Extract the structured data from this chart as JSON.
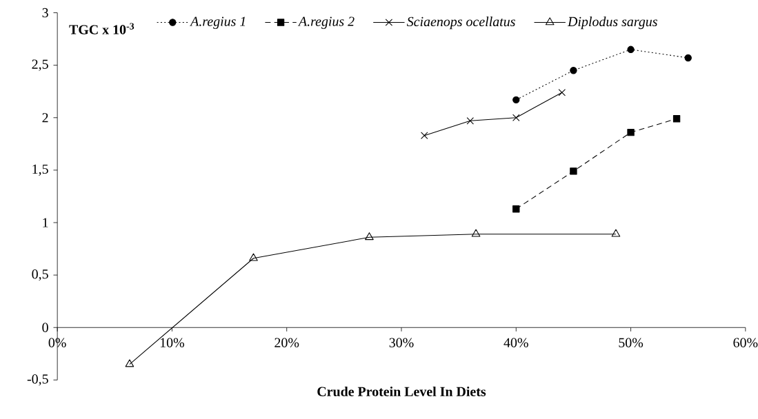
{
  "chart_data": {
    "type": "line",
    "xlabel": "Crude Protein Level In Diets",
    "ylabel": "TGC x 10$^{-3}$",
    "xlim": [
      0,
      60
    ],
    "ylim": [
      -0.5,
      3
    ],
    "xticks": [
      {
        "value": 0,
        "label": "0%"
      },
      {
        "value": 10,
        "label": "10%"
      },
      {
        "value": 20,
        "label": "20%"
      },
      {
        "value": 30,
        "label": "30%"
      },
      {
        "value": 40,
        "label": "40%"
      },
      {
        "value": 50,
        "label": "50%"
      },
      {
        "value": 60,
        "label": "60%"
      }
    ],
    "yticks": [
      {
        "value": -0.5,
        "label": "-0,5"
      },
      0,
      {
        "value": 0.5,
        "label": "0,5"
      },
      1,
      {
        "value": 1.5,
        "label": "1,5"
      },
      2,
      {
        "value": 2.5,
        "label": "2,5"
      },
      3
    ],
    "grid": false,
    "legend": "top",
    "series": [
      {
        "name": "A.regius 1",
        "color": "#000000",
        "marker": "circle",
        "line_style": "dotted",
        "x": [
          40,
          45,
          50,
          55
        ],
        "values": [
          2.17,
          2.45,
          2.65,
          2.57
        ]
      },
      {
        "name": "A.regius 2",
        "color": "#000000",
        "marker": "square",
        "line_style": "dashed",
        "x": [
          40,
          45,
          50,
          54
        ],
        "values": [
          1.13,
          1.49,
          1.86,
          1.99
        ]
      },
      {
        "name": "Sciaenops ocellatus",
        "color": "#000000",
        "marker": "cross",
        "line_style": "solid",
        "x": [
          32,
          36,
          40,
          44
        ],
        "values": [
          1.83,
          1.97,
          2.0,
          2.24
        ]
      },
      {
        "name": "Diplodus sargus",
        "color": "#000000",
        "marker": "triangle",
        "line_style": "solid",
        "x": [
          6.3,
          17.1,
          27.2,
          36.5,
          48.7
        ],
        "values": [
          -0.35,
          0.66,
          0.86,
          0.89,
          0.89
        ]
      }
    ]
  }
}
